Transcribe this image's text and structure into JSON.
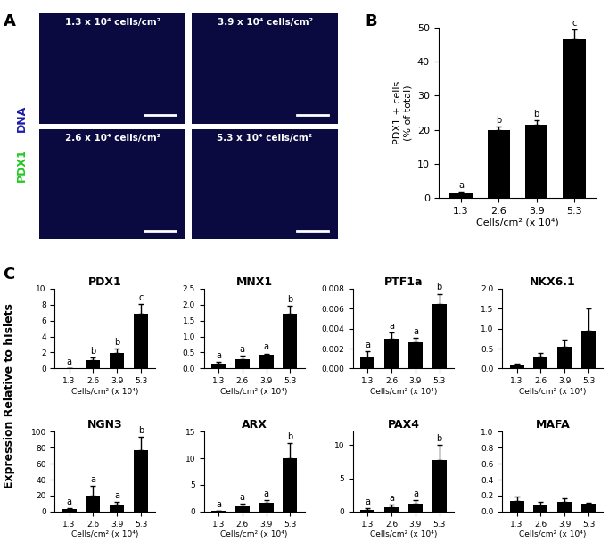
{
  "panel_labels": [
    "A",
    "B",
    "C"
  ],
  "images": {
    "labels": [
      "1.3 x 10⁴ cells/cm²",
      "3.9 x 10⁴ cells/cm²",
      "2.6 x 10⁴ cells/cm²",
      "5.3 x 10⁴ cells/cm²"
    ],
    "channels": [
      {
        "name": "PDX1",
        "color": "#22c822"
      },
      {
        "name": "DNA",
        "color": "#1a1aa8"
      }
    ]
  },
  "shared_ylabel": "Expression Relative to hIslets",
  "chart_data": [
    {
      "type": "bar",
      "categories": [
        "1.3",
        "2.6",
        "3.9",
        "5.3"
      ],
      "values": [
        1.5,
        20,
        21.5,
        46.5
      ],
      "errors": [
        0.3,
        1.0,
        1.2,
        3.0
      ],
      "ylim": [
        0,
        50
      ],
      "yticks": [
        0,
        10,
        20,
        30,
        40,
        50
      ],
      "y_label": "PDX1 + cells\n(% of total)",
      "x_label": "Cells/cm² (x 10⁴)",
      "annotations": [
        "a",
        "b",
        "b",
        "c"
      ],
      "color": "#000000"
    },
    {
      "type": "bar",
      "title": "PDX1",
      "categories": [
        "1.3",
        "2.6",
        "3.9",
        "5.3"
      ],
      "values": [
        0.05,
        1.0,
        1.9,
        6.9
      ],
      "errors": [
        0.02,
        0.4,
        0.6,
        1.2
      ],
      "ylim": [
        0,
        10
      ],
      "yticks": [
        0,
        2,
        4,
        6,
        8,
        10
      ],
      "x_label": "Cells/cm² (x 10⁴)",
      "annotations": [
        "a",
        "b",
        "b",
        "c"
      ],
      "color": "#000000"
    },
    {
      "type": "bar",
      "title": "MNX1",
      "categories": [
        "1.3",
        "2.6",
        "3.9",
        "5.3"
      ],
      "values": [
        0.15,
        0.3,
        0.42,
        1.72
      ],
      "errors": [
        0.05,
        0.1,
        0.05,
        0.25
      ],
      "ylim": [
        0,
        2.5
      ],
      "yticks": [
        {
          "value": 0,
          "label": "0.0"
        },
        0.5,
        {
          "value": 1,
          "label": "1.0"
        },
        1.5,
        {
          "value": 2,
          "label": "2.0"
        },
        2.5
      ],
      "x_label": "Cells/cm² (x 10⁴)",
      "annotations": [
        "a",
        "a",
        "a",
        "b"
      ],
      "color": "#000000"
    },
    {
      "type": "bar",
      "title": "PTF1a",
      "categories": [
        "1.3",
        "2.6",
        "3.9",
        "5.3"
      ],
      "values": [
        0.0011,
        0.003,
        0.0026,
        0.0065
      ],
      "errors": [
        0.0006,
        0.0006,
        0.0005,
        0.001
      ],
      "ylim": [
        0,
        0.008
      ],
      "yticks": [
        {
          "value": 0,
          "label": "0.000"
        },
        {
          "value": 0.002,
          "label": "0.002"
        },
        {
          "value": 0.004,
          "label": "0.004"
        },
        {
          "value": 0.006,
          "label": "0.006"
        },
        {
          "value": 0.008,
          "label": "0.008"
        }
      ],
      "x_label": "Cells/cm² (x 10⁴)",
      "annotations": [
        "a",
        "a",
        "a",
        "b"
      ],
      "color": "#000000"
    },
    {
      "type": "bar",
      "title": "NKX6.1",
      "categories": [
        "1.3",
        "2.6",
        "3.9",
        "5.3"
      ],
      "values": [
        0.1,
        0.3,
        0.55,
        0.95
      ],
      "errors": [
        0.03,
        0.08,
        0.18,
        0.55
      ],
      "ylim": [
        0,
        2.0
      ],
      "yticks": [
        {
          "value": 0,
          "label": "0.0"
        },
        0.5,
        {
          "value": 1,
          "label": "1.0"
        },
        1.5,
        {
          "value": 2,
          "label": "2.0"
        }
      ],
      "x_label": "Cells/cm² (x 10⁴)",
      "color": "#000000"
    },
    {
      "type": "bar",
      "title": "NGN3",
      "categories": [
        "1.3",
        "2.6",
        "3.9",
        "5.3"
      ],
      "values": [
        3,
        20,
        9,
        77
      ],
      "errors": [
        1,
        12,
        3,
        17
      ],
      "ylim": [
        0,
        100
      ],
      "yticks": [
        0,
        20,
        40,
        60,
        80,
        100
      ],
      "x_label": "Cells/cm² (x 10⁴)",
      "annotations": [
        "a",
        "a",
        "a",
        "b"
      ],
      "color": "#000000"
    },
    {
      "type": "bar",
      "title": "ARX",
      "categories": [
        "1.3",
        "2.6",
        "3.9",
        "5.3"
      ],
      "values": [
        0.1,
        1.0,
        1.6,
        10
      ],
      "errors": [
        0.05,
        0.4,
        0.5,
        2.8
      ],
      "ylim": [
        0,
        15
      ],
      "yticks": [
        0,
        5,
        10,
        15
      ],
      "x_label": "Cells/cm² (x 10⁴)",
      "annotations": [
        "a",
        "a",
        "a",
        "b"
      ],
      "color": "#000000"
    },
    {
      "type": "bar",
      "title": "PAX4",
      "categories": [
        "1.3",
        "2.6",
        "3.9",
        "5.3"
      ],
      "values": [
        0.3,
        0.6,
        1.2,
        7.8
      ],
      "errors": [
        0.2,
        0.4,
        0.5,
        2.2
      ],
      "ylim": [
        0,
        12
      ],
      "yticks": [
        0,
        5,
        10
      ],
      "x_label": "Cells/cm² (x 10⁴)",
      "annotations": [
        "a",
        "a",
        "a",
        "b"
      ],
      "color": "#000000"
    },
    {
      "type": "bar",
      "title": "MAFA",
      "categories": [
        "1.3",
        "2.6",
        "3.9",
        "5.3"
      ],
      "values": [
        0.13,
        0.08,
        0.12,
        0.1
      ],
      "errors": [
        0.06,
        0.04,
        0.05,
        0.01
      ],
      "ylim": [
        0,
        1.0
      ],
      "yticks": [
        {
          "value": 0,
          "label": "0.0"
        },
        0.2,
        0.4,
        0.6,
        0.8,
        {
          "value": 1,
          "label": "1.0"
        }
      ],
      "x_label": "Cells/cm² (x 10⁴)",
      "color": "#000000"
    }
  ]
}
